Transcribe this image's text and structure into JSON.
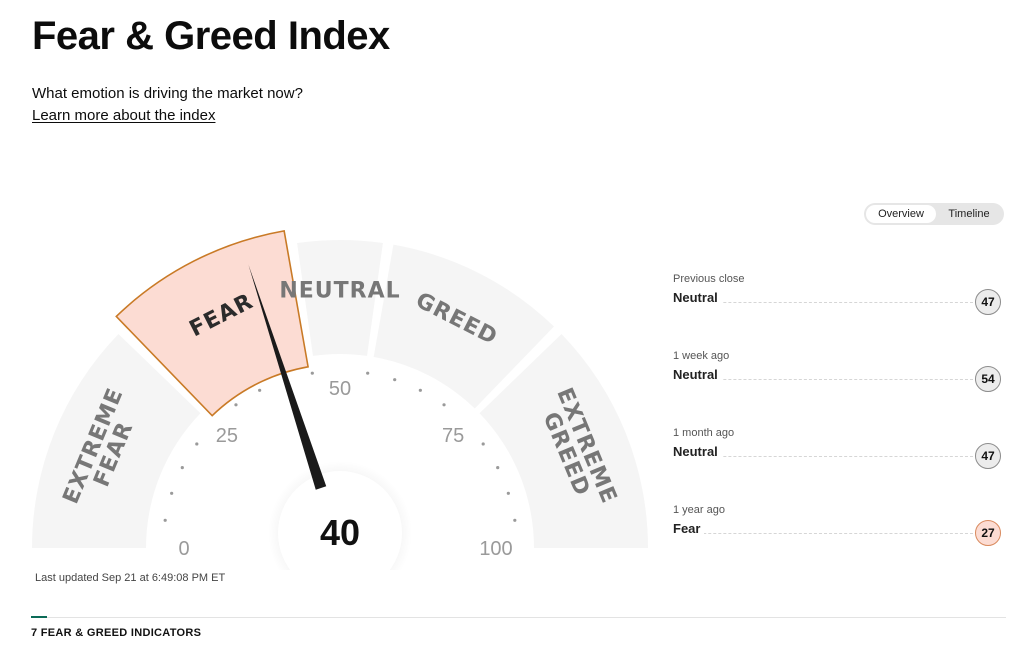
{
  "page": {
    "title": "Fear & Greed Index",
    "subtitle": "What emotion is driving the market now?",
    "learn_link": "Learn more about the index"
  },
  "view_toggle": {
    "options": [
      "Overview",
      "Timeline"
    ],
    "selected": "Overview"
  },
  "gauge": {
    "score": 40,
    "rating": "FEAR",
    "segments": [
      {
        "label_lines": [
          "EXTREME",
          "FEAR"
        ],
        "from": 0,
        "to": 25
      },
      {
        "label_lines": [
          "FEAR"
        ],
        "from": 25,
        "to": 45
      },
      {
        "label_lines": [
          "NEUTRAL"
        ],
        "from": 45,
        "to": 55
      },
      {
        "label_lines": [
          "GREED"
        ],
        "from": 55,
        "to": 75
      },
      {
        "label_lines": [
          "EXTREME",
          "GREED"
        ],
        "from": 75,
        "to": 100
      }
    ],
    "tick_labels": [
      "0",
      "25",
      "50",
      "75",
      "100"
    ],
    "colors": {
      "segment_bg": "#f5f5f5",
      "active_fill": "#fcdcd3",
      "active_border": "#c97a26",
      "needle": "#1a1a1a"
    }
  },
  "last_updated": "Last updated Sep 21 at 6:49:08 PM ET",
  "history": [
    {
      "label": "Previous close",
      "rating": "Neutral",
      "score": "47"
    },
    {
      "label": "1 week ago",
      "rating": "Neutral",
      "score": "54"
    },
    {
      "label": "1 month ago",
      "rating": "Neutral",
      "score": "47"
    },
    {
      "label": "1 year ago",
      "rating": "Fear",
      "score": "27"
    }
  ],
  "indicators": {
    "title": "7 FEAR & GREED INDICATORS"
  }
}
